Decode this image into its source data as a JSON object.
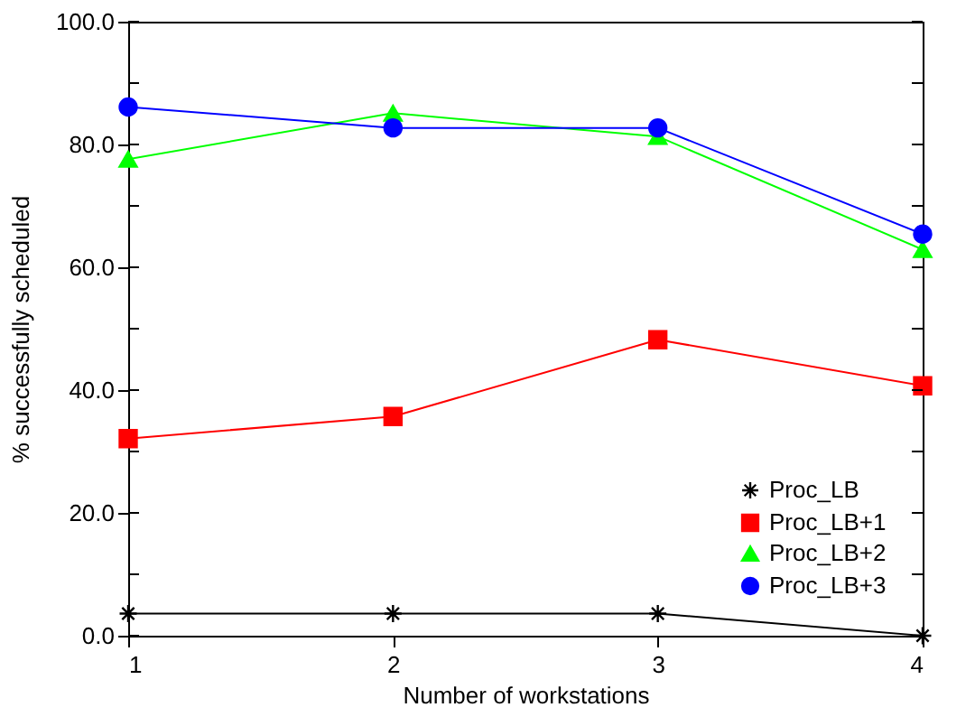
{
  "chart_data": {
    "type": "line",
    "xlabel": "Number of workstations",
    "ylabel": "% successfully scheduled",
    "x": [
      1,
      2,
      3,
      4
    ],
    "xlim": [
      1,
      4
    ],
    "xticks": [
      1,
      2,
      3,
      4
    ],
    "ylim": [
      0,
      100
    ],
    "yticks": [
      {
        "value": 0,
        "label": "0.0"
      },
      {
        "value": 10,
        "label": null
      },
      {
        "value": 20,
        "label": "20.0"
      },
      {
        "value": 30,
        "label": null
      },
      {
        "value": 40,
        "label": "40.0"
      },
      {
        "value": 50,
        "label": null
      },
      {
        "value": 60,
        "label": "60.0"
      },
      {
        "value": 70,
        "label": null
      },
      {
        "value": 80,
        "label": "80.0"
      },
      {
        "value": 90,
        "label": null
      },
      {
        "value": 100,
        "label": "100.0"
      }
    ],
    "grid": false,
    "legend": "bottom right",
    "line_style": "solid",
    "series": [
      {
        "name": "Proc_LB",
        "color": "#000000",
        "marker": "cross",
        "values": [
          3.6,
          3.6,
          3.6,
          0
        ]
      },
      {
        "name": "Proc_LB+1",
        "color": "#ff0000",
        "marker": "square",
        "values": [
          32.1,
          35.7,
          48.2,
          40.7
        ]
      },
      {
        "name": "Proc_LB+2",
        "color": "#00ff00",
        "marker": "triangle",
        "values": [
          77.6,
          85.1,
          81.3,
          62.9
        ]
      },
      {
        "name": "Proc_LB+3",
        "color": "#0000ff",
        "marker": "circle",
        "values": [
          86.1,
          82.7,
          82.7,
          65.4
        ]
      }
    ]
  }
}
